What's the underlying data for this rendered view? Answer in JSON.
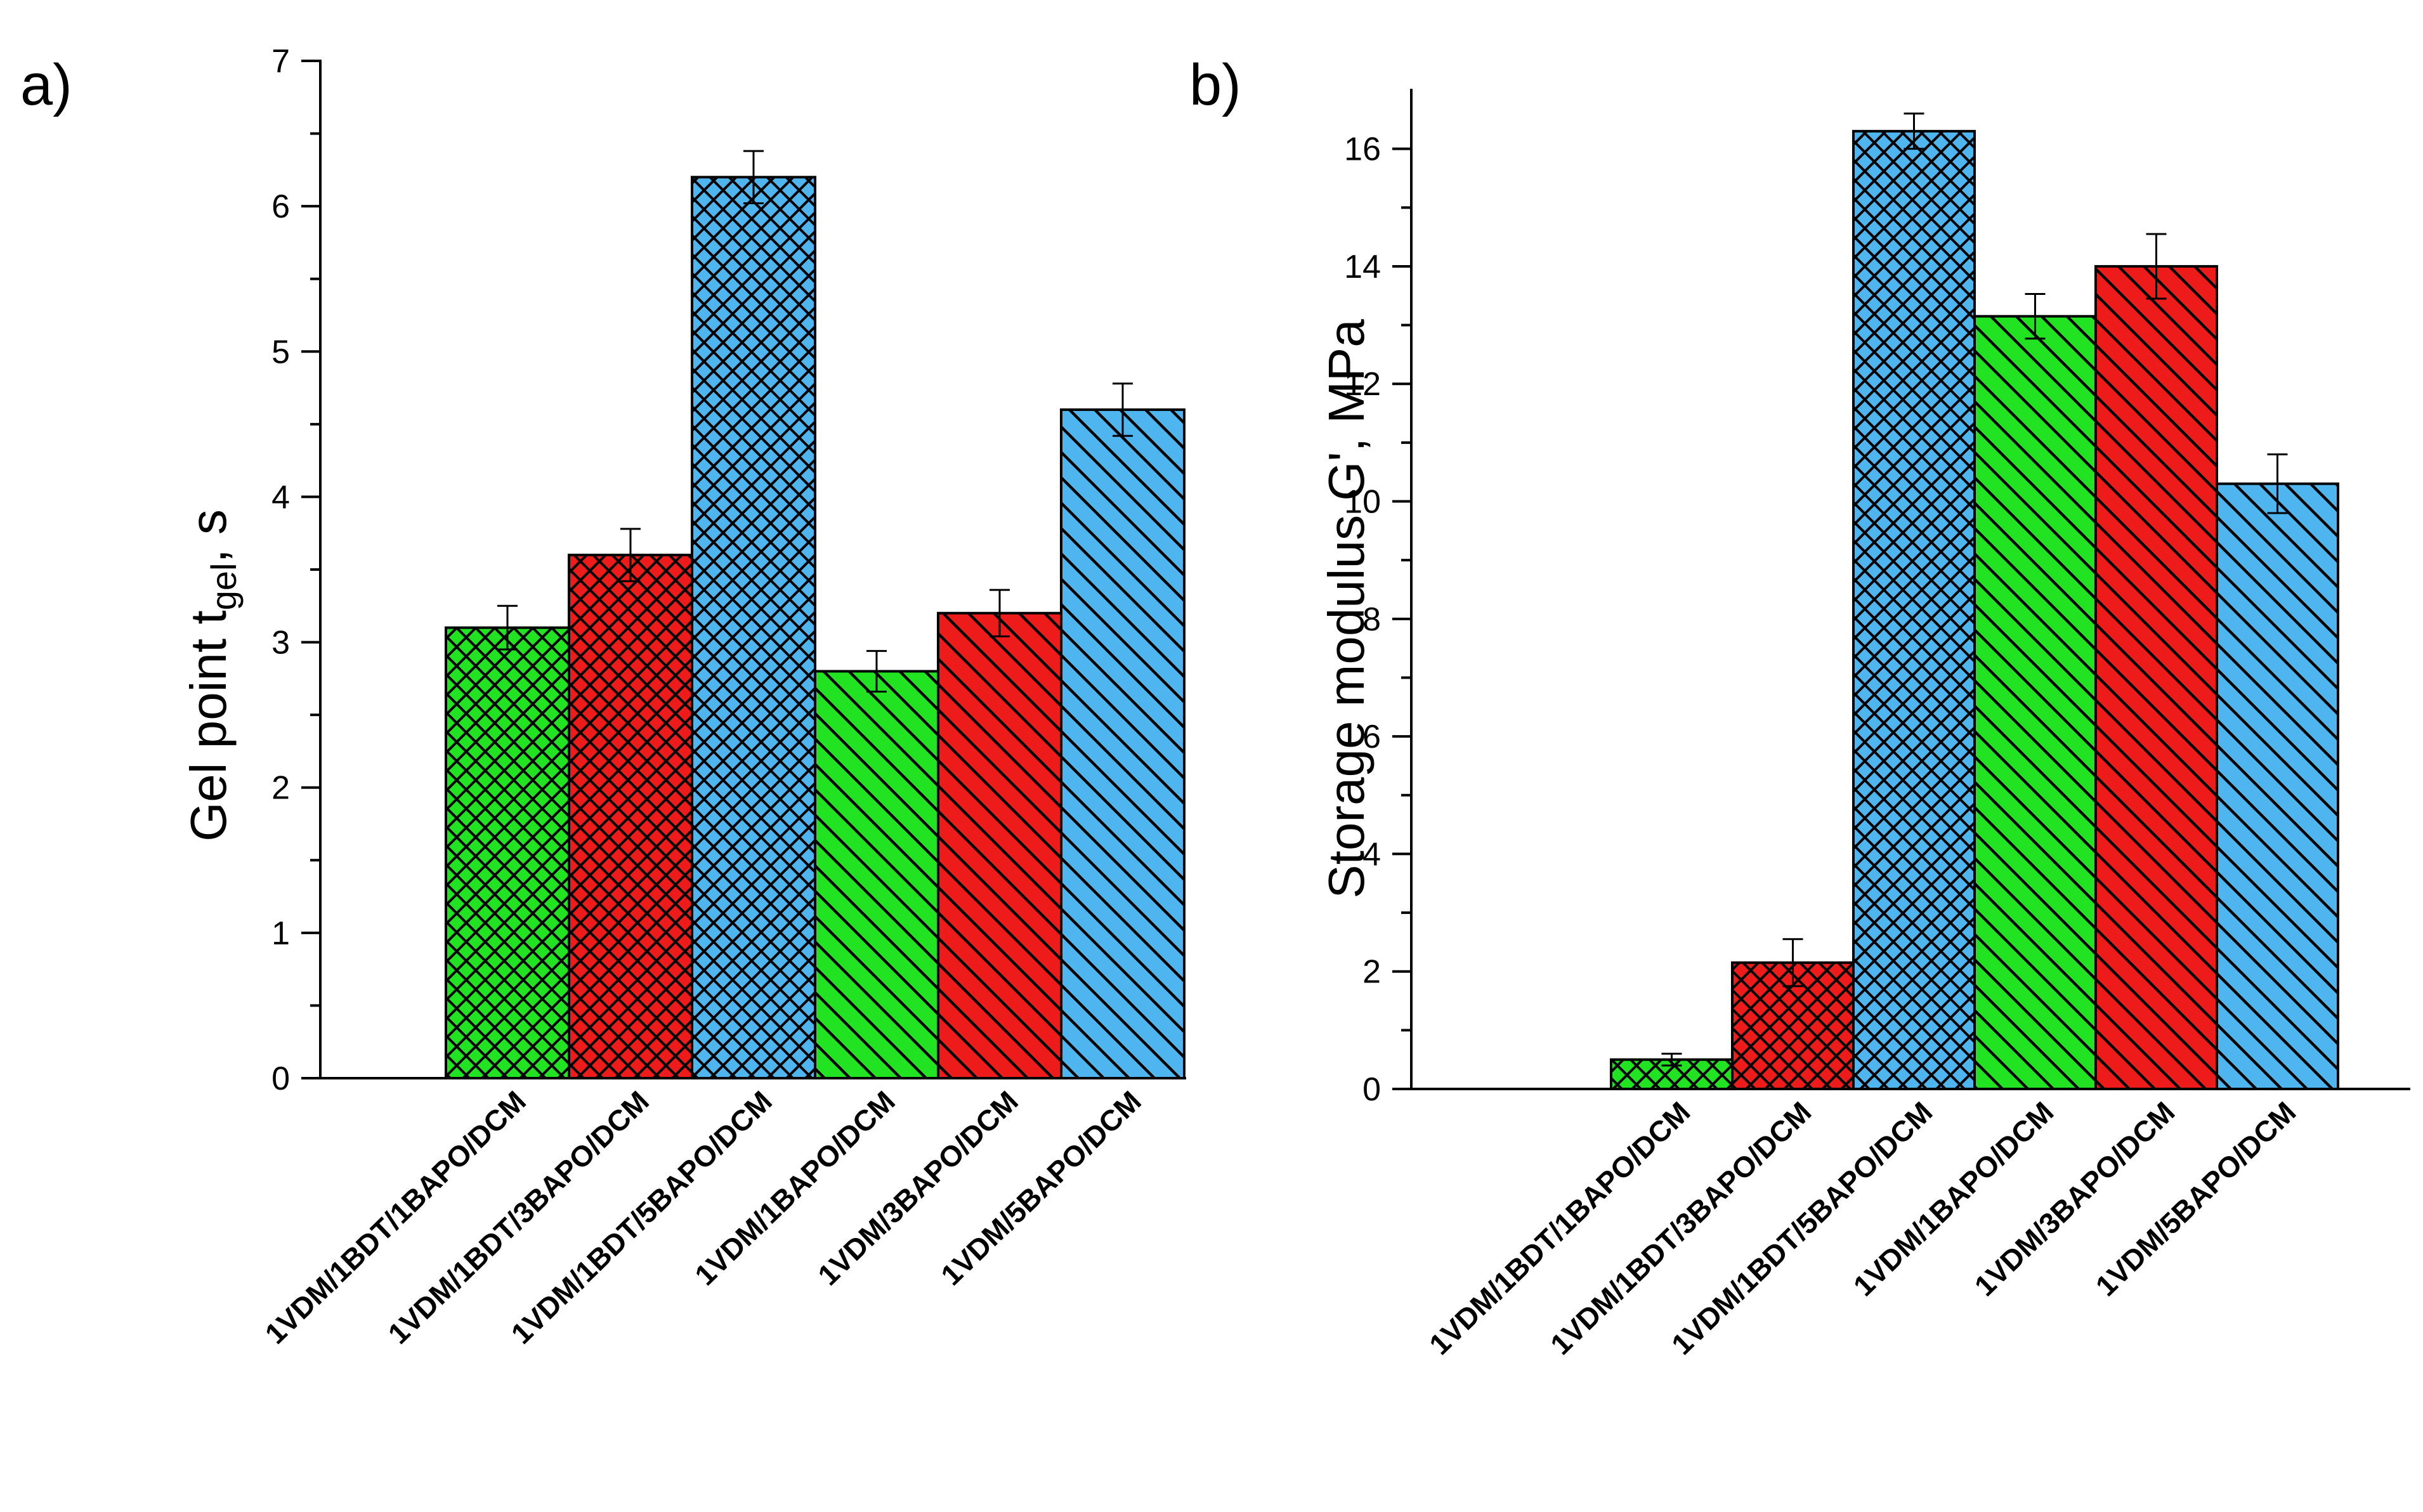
{
  "chart_data": [
    {
      "type": "bar",
      "panel_label": "a)",
      "categories": [
        "1VDM/1BDT/1BAPO/DCM",
        "1VDM/1BDT/3BAPO/DCM",
        "1VDM/1BDT/5BAPO/DCM",
        "1VDM/1BAPO/DCM",
        "1VDM/3BAPO/DCM",
        "1VDM/5BAPO/DCM"
      ],
      "values": [
        3.1,
        3.6,
        6.2,
        2.8,
        3.2,
        4.6
      ],
      "errors": [
        0.15,
        0.18,
        0.18,
        0.14,
        0.16,
        0.18
      ],
      "colors": [
        "#22e322",
        "#ee1b1b",
        "#4fb5ee",
        "#22e322",
        "#ee1b1b",
        "#4fb5ee"
      ],
      "patterns": [
        "crosshatch",
        "crosshatch",
        "crosshatch",
        "diagonal",
        "diagonal",
        "diagonal"
      ],
      "ylabel_main": "Gel point t",
      "ylabel_sub": "gel",
      "ylabel_tail": ", s",
      "ylim": [
        0,
        7
      ],
      "yticks": [
        "0",
        "1",
        "2",
        "3",
        "4",
        "5",
        "6",
        "7"
      ]
    },
    {
      "type": "bar",
      "panel_label": "b)",
      "categories": [
        "1VDM/1BDT/1BAPO/DCM",
        "1VDM/1BDT/3BAPO/DCM",
        "1VDM/1BDT/5BAPO/DCM",
        "1VDM/1BAPO/DCM",
        "1VDM/3BAPO/DCM",
        "1VDM/5BAPO/DCM"
      ],
      "values": [
        0.5,
        2.15,
        16.3,
        13.15,
        14.0,
        10.3
      ],
      "errors": [
        0.1,
        0.4,
        0.3,
        0.38,
        0.55,
        0.5
      ],
      "colors": [
        "#22e322",
        "#ee1b1b",
        "#4fb5ee",
        "#22e322",
        "#ee1b1b",
        "#4fb5ee"
      ],
      "patterns": [
        "crosshatch",
        "crosshatch",
        "crosshatch",
        "diagonal",
        "diagonal",
        "diagonal"
      ],
      "ylabel_main": "Storage modulus G', MPa",
      "ylabel_sub": "",
      "ylabel_tail": "",
      "ylim": [
        0,
        17
      ],
      "yticks": [
        "0",
        "2",
        "4",
        "6",
        "8",
        "10",
        "12",
        "14",
        "16"
      ]
    }
  ]
}
